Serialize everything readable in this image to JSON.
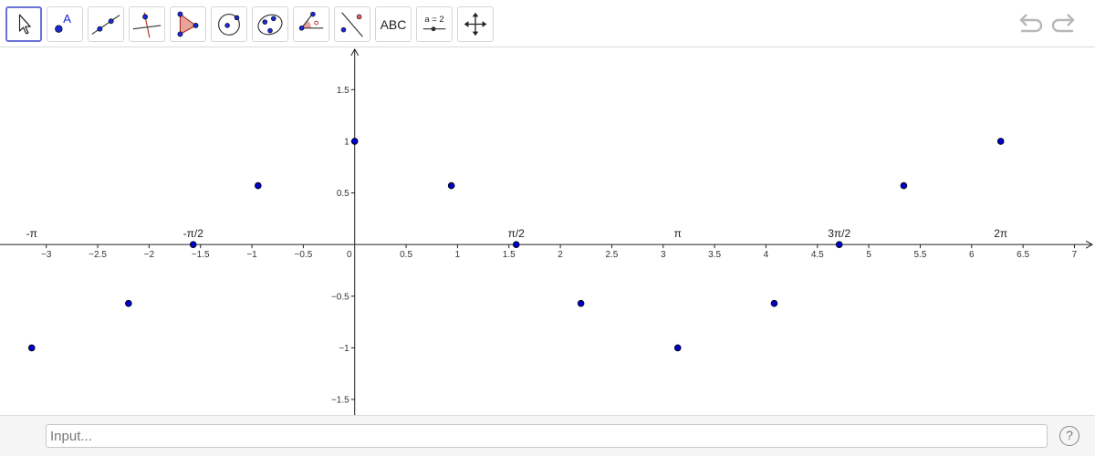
{
  "toolbar": {
    "tools": [
      {
        "name": "Move",
        "icon": "arrow-cursor-icon"
      },
      {
        "name": "Point",
        "icon": "point-icon",
        "glyph": "A"
      },
      {
        "name": "Line",
        "icon": "line-icon"
      },
      {
        "name": "Perpendicular Line",
        "icon": "perpendicular-line-icon"
      },
      {
        "name": "Polygon",
        "icon": "polygon-icon"
      },
      {
        "name": "Circle with Center",
        "icon": "circle-center-icon"
      },
      {
        "name": "Conic",
        "icon": "ellipse-icon"
      },
      {
        "name": "Angle",
        "icon": "angle-icon"
      },
      {
        "name": "Reflect",
        "icon": "reflect-icon"
      },
      {
        "name": "Text",
        "icon": "text-icon",
        "label": "ABC"
      },
      {
        "name": "Slider",
        "icon": "slider-icon",
        "label": "a = 2"
      },
      {
        "name": "Move Graphics View",
        "icon": "move-view-icon"
      }
    ],
    "undo_icon": "undo-icon",
    "redo_icon": "redo-icon"
  },
  "input_bar": {
    "placeholder": "Input...",
    "help_label": "?"
  },
  "chart_data": {
    "type": "scatter",
    "x_range": [
      -3.45,
      7.2
    ],
    "y_range": [
      -1.65,
      1.9
    ],
    "x_ticks": [
      -3,
      -2.5,
      -2,
      -1.5,
      -1,
      -0.5,
      0.5,
      1,
      1.5,
      2,
      2.5,
      3,
      3.5,
      4,
      4.5,
      5,
      5.5,
      6,
      6.5,
      7
    ],
    "x_tick_labels": [
      "−3",
      "−2.5",
      "−2",
      "−1.5",
      "−1",
      "−0.5",
      "0.5",
      "1",
      "1.5",
      "2",
      "2.5",
      "3",
      "3.5",
      "4",
      "4.5",
      "5",
      "5.5",
      "6",
      "6.5",
      "7"
    ],
    "y_ticks": [
      -1.5,
      -1,
      -0.5,
      0.5,
      1,
      1.5
    ],
    "y_tick_labels": [
      "−1.5",
      "−1",
      "−0.5",
      "0.5",
      "1",
      "1.5"
    ],
    "origin_label": "0",
    "grid": false,
    "point_color": "#0000cc",
    "points": [
      {
        "x": -3.1416,
        "y": -1
      },
      {
        "x": -2.2,
        "y": -0.57
      },
      {
        "x": -1.5708,
        "y": 0
      },
      {
        "x": -0.94,
        "y": 0.57
      },
      {
        "x": 0,
        "y": 1
      },
      {
        "x": 0.94,
        "y": 0.57
      },
      {
        "x": 1.5708,
        "y": 0
      },
      {
        "x": 2.2,
        "y": -0.57
      },
      {
        "x": 3.1416,
        "y": -1
      },
      {
        "x": 4.08,
        "y": -0.57
      },
      {
        "x": 4.7124,
        "y": 0
      },
      {
        "x": 5.34,
        "y": 0.57
      },
      {
        "x": 6.2832,
        "y": 1
      }
    ],
    "annotations": [
      {
        "text": "-π",
        "x": -3.1416
      },
      {
        "text": "-π/2",
        "x": -1.5708
      },
      {
        "text": "π/2",
        "x": 1.5708
      },
      {
        "text": "π",
        "x": 3.1416
      },
      {
        "text": "3π/2",
        "x": 4.7124
      },
      {
        "text": "2π",
        "x": 6.2832
      }
    ]
  }
}
